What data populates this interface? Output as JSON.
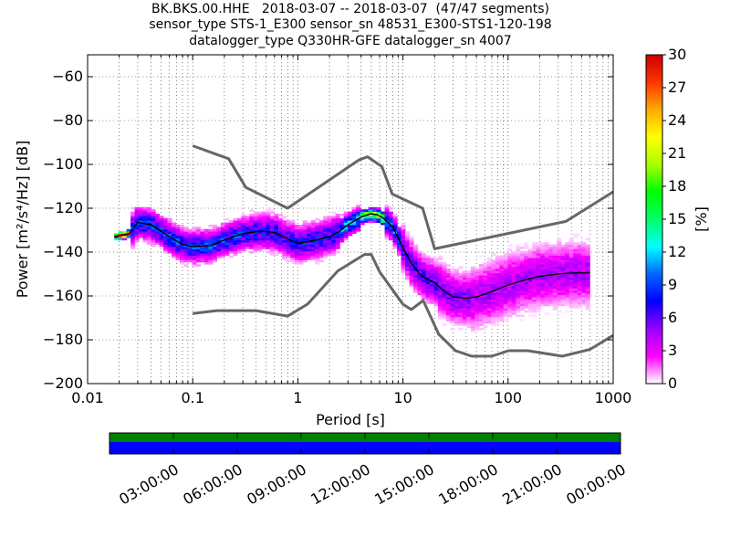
{
  "chart_data": {
    "type": "heatmap",
    "title_lines": [
      "BK.BKS.00.HHE   2018-03-07 -- 2018-03-07  (47/47 segments)",
      "sensor_type STS-1_E300 sensor_sn 48531_E300-STS1-120-198",
      "datalogger_type Q330HR-GFE datalogger_sn 4007"
    ],
    "xlabel": "Period [s]",
    "ylabel": "Power [m²/s⁴/Hz] [dB]",
    "x_scale": "log",
    "xlim": [
      0.01,
      1000
    ],
    "ylim": [
      -200,
      -50
    ],
    "x_ticks": [
      {
        "value": 0.01,
        "label": "0.01"
      },
      {
        "value": 0.1,
        "label": "0.1"
      },
      {
        "value": 1,
        "label": "1"
      },
      {
        "value": 10,
        "label": "10"
      },
      {
        "value": 100,
        "label": "100"
      },
      {
        "value": 1000,
        "label": "1000"
      }
    ],
    "y_ticks": [
      {
        "value": -60,
        "label": "−60"
      },
      {
        "value": -80,
        "label": "−80"
      },
      {
        "value": -100,
        "label": "−100"
      },
      {
        "value": -120,
        "label": "−120"
      },
      {
        "value": -140,
        "label": "−140"
      },
      {
        "value": -160,
        "label": "−160"
      },
      {
        "value": -180,
        "label": "−180"
      },
      {
        "value": -200,
        "label": "−200"
      }
    ],
    "grid": true,
    "noise_model_high": {
      "period": [
        0.1,
        0.22,
        0.32,
        0.8,
        3.8,
        4.6,
        6.3,
        7.9,
        15.4,
        20,
        354.8,
        1000
      ],
      "db": [
        -91.5,
        -97.4,
        -110.5,
        -120,
        -98,
        -96.5,
        -101,
        -113.5,
        -120,
        -138.5,
        -126,
        -112.5
      ]
    },
    "noise_model_low": {
      "period": [
        0.1,
        0.17,
        0.4,
        0.8,
        1.24,
        2.4,
        4.3,
        5,
        6,
        10,
        12,
        15.6,
        21.9,
        31.6,
        45,
        70,
        101,
        154,
        328,
        600,
        1000
      ],
      "db": [
        -168,
        -166.7,
        -166.7,
        -169.2,
        -163.7,
        -148.6,
        -141.1,
        -141.1,
        -149,
        -163.8,
        -166.2,
        -162.1,
        -177.5,
        -185,
        -187.5,
        -187.5,
        -185,
        -185,
        -187.5,
        -184.4,
        -178
      ]
    },
    "mean_curve": {
      "period": [
        0.018,
        0.025,
        0.03,
        0.04,
        0.06,
        0.08,
        0.1,
        0.15,
        0.2,
        0.3,
        0.45,
        0.6,
        0.8,
        1.0,
        1.5,
        2.0,
        2.5,
        3.0,
        4.0,
        5.0,
        5.7,
        6.5,
        8.0,
        10,
        12,
        15,
        20,
        25,
        30,
        40,
        50,
        70,
        100,
        150,
        200,
        300,
        400,
        600
      ],
      "db": [
        -133,
        -131.5,
        -126.5,
        -127.5,
        -133,
        -136.5,
        -137.5,
        -137,
        -134.5,
        -131.5,
        -130.5,
        -131,
        -134,
        -136,
        -134.5,
        -133,
        -130.5,
        -127.5,
        -124,
        -122.5,
        -123,
        -124.5,
        -128.5,
        -138,
        -145,
        -151,
        -154,
        -158,
        -160.5,
        -161,
        -160.5,
        -158,
        -155,
        -152.5,
        -151,
        -150,
        -149.5,
        -149.5
      ]
    },
    "colorbar": {
      "label": "[%]",
      "min": 0,
      "max": 30,
      "ticks": [
        {
          "value": 0,
          "label": "0"
        },
        {
          "value": 3,
          "label": "3"
        },
        {
          "value": 6,
          "label": "6"
        },
        {
          "value": 9,
          "label": "9"
        },
        {
          "value": 12,
          "label": "12"
        },
        {
          "value": 15,
          "label": "15"
        },
        {
          "value": 18,
          "label": "18"
        },
        {
          "value": 21,
          "label": "21"
        },
        {
          "value": 24,
          "label": "24"
        },
        {
          "value": 27,
          "label": "27"
        },
        {
          "value": 30,
          "label": "30"
        }
      ],
      "stops": [
        "#ffffff",
        "#ff00ff",
        "#9900ff",
        "#0000ff",
        "#0066ff",
        "#00ffff",
        "#00ff66",
        "#00ff00",
        "#aaff00",
        "#ffff00",
        "#ffaa00",
        "#ff3300",
        "#cc0000"
      ]
    },
    "timeline": {
      "bar_top_color": "#008000",
      "bar_bottom_color": "#0000ff",
      "labels": [
        "03:00:00",
        "06:00:00",
        "09:00:00",
        "12:00:00",
        "15:00:00",
        "18:00:00",
        "21:00:00",
        "00:00:00"
      ]
    }
  }
}
